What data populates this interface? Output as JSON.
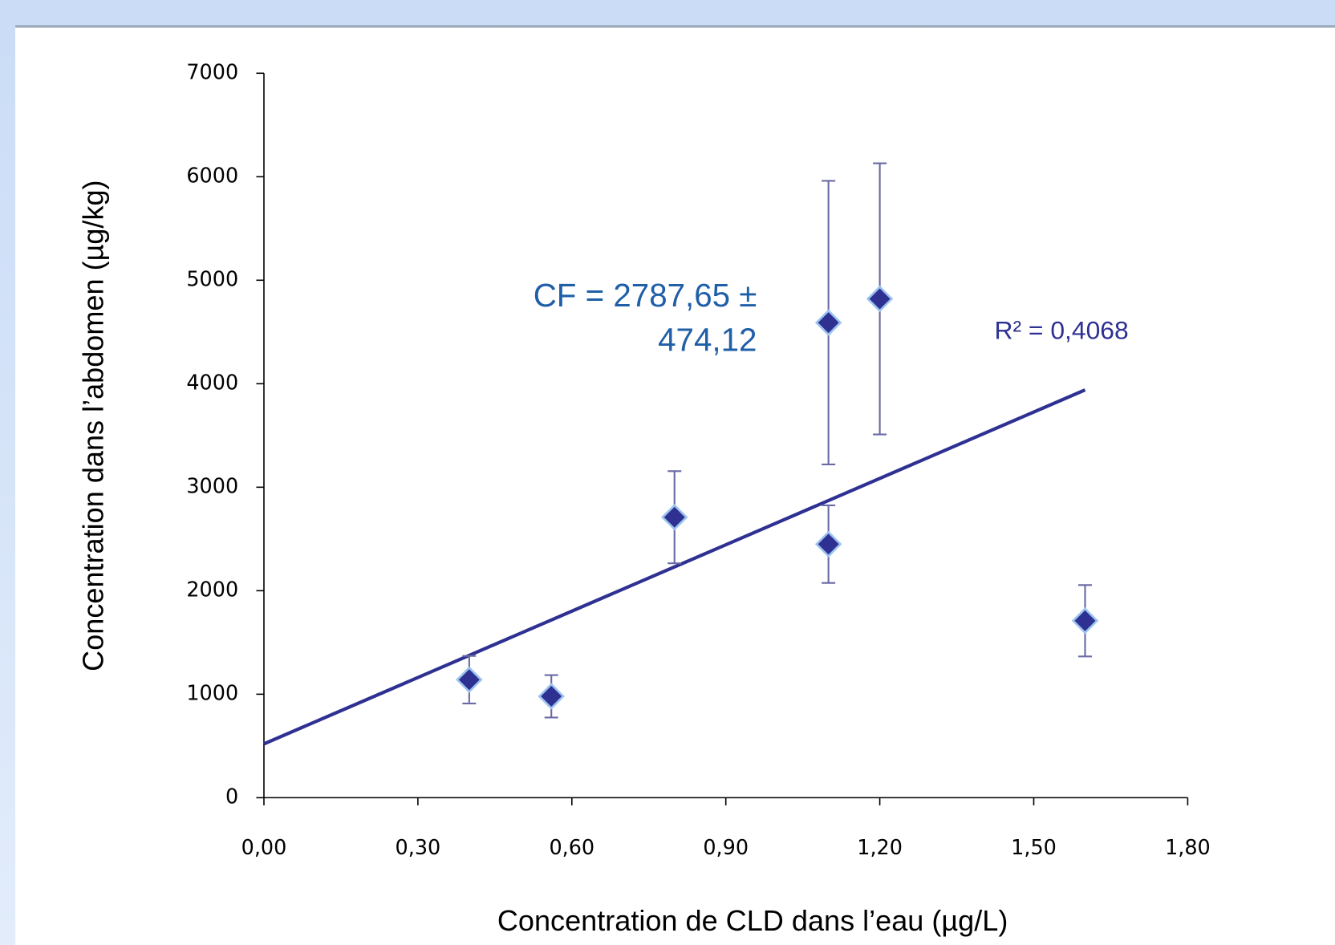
{
  "chart_data": {
    "type": "scatter",
    "xlabel": "Concentration de CLD dans l’eau (µg/L)",
    "ylabel": "Concentration dans l’abdomen (µg/kg)",
    "xlim": [
      0,
      1.8
    ],
    "ylim": [
      0,
      7000
    ],
    "xticks": [
      {
        "value": 0,
        "label": "0,00"
      },
      {
        "value": 0.3,
        "label": "0,30"
      },
      {
        "value": 0.6,
        "label": "0,60"
      },
      {
        "value": 0.9,
        "label": "0,90"
      },
      {
        "value": 1.2,
        "label": "1,20"
      },
      {
        "value": 1.5,
        "label": "1,50"
      },
      {
        "value": 1.8,
        "label": "1,80"
      }
    ],
    "yticks": [
      0,
      1000,
      2000,
      3000,
      4000,
      5000,
      6000,
      7000
    ],
    "series": [
      {
        "color": "#2e3192",
        "edge_color": "#9cc3ee",
        "error_color": "#6a6aa6",
        "x": [
          0.4,
          0.56,
          0.8,
          1.1,
          1.2,
          1.1,
          1.6
        ],
        "values": [
          1140,
          980,
          2710,
          4590,
          4820,
          2450,
          1710
        ],
        "errors": [
          230,
          205,
          445,
          1370,
          1310,
          375,
          345
        ]
      }
    ],
    "trendline": {
      "color": "#2e3192",
      "x": [
        0,
        1.6
      ],
      "y": [
        520,
        3940
      ]
    },
    "annotations": [
      {
        "lines": [
          "CF = 2787,65 ±",
          "474,12"
        ],
        "color": "#1f5fa8"
      },
      {
        "text": "R² = 0,4068",
        "color": "#2e3192"
      }
    ]
  }
}
